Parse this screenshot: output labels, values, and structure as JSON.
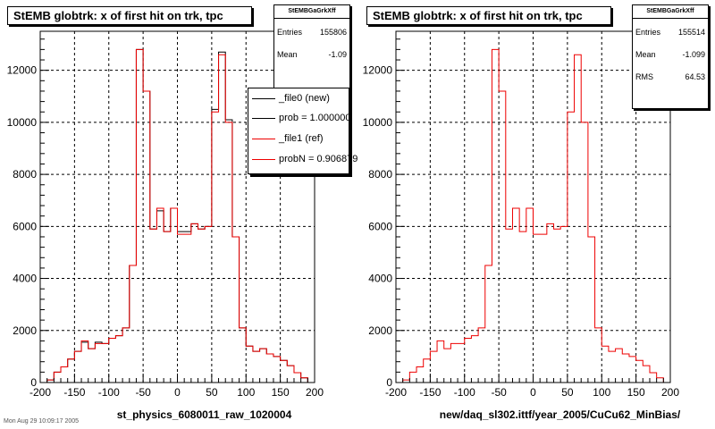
{
  "footer_text": "Mon Aug 29 10:09:17 2005",
  "chart_data": [
    {
      "type": "histogram",
      "title": "StEMB globtrk: x of first hit on trk, tpc",
      "xlabel": "st_physics_6080011_raw_1020004",
      "ylabel": "",
      "xlim": [
        -200,
        200
      ],
      "ylim": [
        0,
        13500
      ],
      "x_ticks": [
        -200,
        -150,
        -100,
        -50,
        0,
        50,
        100,
        150,
        200
      ],
      "y_ticks": [
        0,
        2000,
        4000,
        6000,
        8000,
        10000,
        12000
      ],
      "grid": true,
      "bin_edges": [
        -190,
        -180,
        -170,
        -160,
        -150,
        -140,
        -130,
        -120,
        -110,
        -100,
        -90,
        -80,
        -70,
        -60,
        -50,
        -40,
        -30,
        -20,
        -10,
        0,
        10,
        20,
        30,
        40,
        50,
        60,
        70,
        80,
        90,
        100,
        110,
        120,
        130,
        140,
        150,
        160,
        170,
        180,
        190
      ],
      "series": [
        {
          "name": "_file0 (new)",
          "color": "#000000",
          "values": [
            100,
            400,
            600,
            900,
            1200,
            1550,
            1300,
            1550,
            1500,
            1700,
            1800,
            2100,
            4500,
            12800,
            11200,
            5900,
            6600,
            5800,
            6700,
            5800,
            5800,
            6100,
            5900,
            6000,
            10500,
            12700,
            10100,
            5600,
            2100,
            1400,
            1200,
            1300,
            1100,
            1000,
            850,
            650,
            380,
            180
          ]
        },
        {
          "name": "_file1 (ref)",
          "color": "#ee0000",
          "values": [
            100,
            400,
            600,
            900,
            1200,
            1600,
            1300,
            1500,
            1500,
            1700,
            1800,
            2100,
            4500,
            12800,
            11200,
            5900,
            6700,
            5800,
            6700,
            5700,
            5700,
            6100,
            5900,
            6000,
            10400,
            12600,
            10000,
            5600,
            2100,
            1400,
            1200,
            1300,
            1100,
            1000,
            850,
            650,
            380,
            180
          ]
        }
      ],
      "stats": {
        "header": "StEMBGaGrkXff",
        "entries_label": "Entries",
        "entries": "155806",
        "mean_label": "Mean",
        "mean": "-1.09"
      },
      "legend": [
        {
          "label": "_file0 (new)",
          "color": "#000000"
        },
        {
          "label": "prob = 1.000000",
          "color": "#000000"
        },
        {
          "label": "_file1 (ref)",
          "color": "#ee0000"
        },
        {
          "label": "probN = 0.906879",
          "color": "#ee0000"
        }
      ]
    },
    {
      "type": "histogram",
      "title": "StEMB globtrk: x of first hit on trk, tpc",
      "xlabel": "new/daq_sl302.ittf/year_2005/CuCu62_MinBias/",
      "ylabel": "",
      "xlim": [
        -200,
        200
      ],
      "ylim": [
        0,
        13500
      ],
      "x_ticks": [
        -200,
        -150,
        -100,
        -50,
        0,
        50,
        100,
        150,
        200
      ],
      "y_ticks": [
        0,
        2000,
        4000,
        6000,
        8000,
        10000,
        12000
      ],
      "grid": true,
      "bin_edges": [
        -190,
        -180,
        -170,
        -160,
        -150,
        -140,
        -130,
        -120,
        -110,
        -100,
        -90,
        -80,
        -70,
        -60,
        -50,
        -40,
        -30,
        -20,
        -10,
        0,
        10,
        20,
        30,
        40,
        50,
        60,
        70,
        80,
        90,
        100,
        110,
        120,
        130,
        140,
        150,
        160,
        170,
        180,
        190
      ],
      "series": [
        {
          "name": "_file1 (ref)",
          "color": "#ee0000",
          "values": [
            100,
            400,
            600,
            900,
            1200,
            1600,
            1300,
            1500,
            1500,
            1700,
            1800,
            2100,
            4500,
            12800,
            11200,
            5900,
            6700,
            5800,
            6700,
            5700,
            5700,
            6100,
            5900,
            6000,
            10400,
            12600,
            10000,
            5600,
            2100,
            1400,
            1200,
            1300,
            1100,
            1000,
            850,
            650,
            380,
            180
          ]
        }
      ],
      "stats": {
        "header": "StEMBGaGrkXff",
        "entries_label": "Entries",
        "entries": "155514",
        "mean_label": "Mean",
        "mean": "-1.099",
        "rms_label": "RMS",
        "rms": "64.53"
      }
    }
  ]
}
